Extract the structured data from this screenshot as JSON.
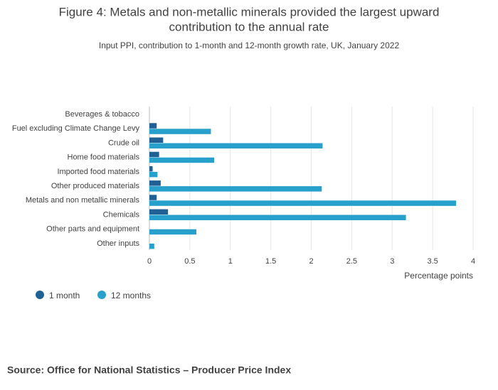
{
  "chart_data": {
    "type": "hbar",
    "title": "Figure 4: Metals and non-metallic minerals provided the largest upward contribution to the annual rate",
    "title_lines": [
      "Figure 4: Metals and non-metallic minerals provided the largest upward",
      "contribution to the annual rate"
    ],
    "subtitle": "Input PPI, contribution to 1-month and 12-month growth rate, UK, January 2022",
    "categories": [
      "Beverages & tobacco",
      "Fuel excluding Climate Change Levy",
      "Crude oil",
      "Home food materials",
      "Imported food materials",
      "Other produced materials",
      "Metals and non metallic minerals",
      "Chemicals",
      "Other parts and equipment",
      "Other inputs"
    ],
    "series": [
      {
        "name": "1 month",
        "color": "#206095",
        "values": [
          0,
          0.09,
          0.17,
          0.12,
          0.04,
          0.14,
          0.09,
          0.23,
          0,
          0
        ]
      },
      {
        "name": "12 months",
        "color": "#27a0cc",
        "values": [
          0,
          0.76,
          2.14,
          0.8,
          0.1,
          2.13,
          3.79,
          3.17,
          0.58,
          0.06
        ]
      }
    ],
    "xlim": [
      0,
      4
    ],
    "xticks": [
      0,
      0.5,
      1,
      1.5,
      2,
      2.5,
      3,
      3.5,
      4
    ],
    "xlabel": "Percentage points",
    "grid": true,
    "source": "Source: Office for National Statistics – Producer Price Index"
  }
}
